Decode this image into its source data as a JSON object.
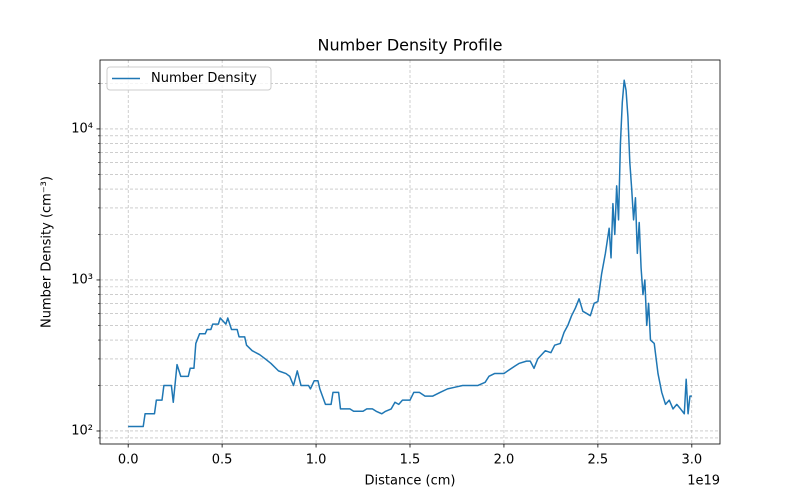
{
  "chart_data": {
    "type": "line",
    "title": "Number Density Profile",
    "x_label": "Distance (cm)",
    "x_offset_label": "1e19",
    "y_label": "Number Density (cm⁻³)",
    "y_scale": "log",
    "grid": true,
    "minor_grid": true,
    "legend_loc": "upper left",
    "xlim": [
      -0.15,
      3.15
    ],
    "xticks": [
      {
        "value": 0,
        "label": "0.0"
      },
      {
        "value": 0.5,
        "label": "0.5"
      },
      {
        "value": 1,
        "label": "1.0"
      },
      {
        "value": 1.5,
        "label": "1.5"
      },
      {
        "value": 2,
        "label": "2.0"
      },
      {
        "value": 2.5,
        "label": "2.5"
      },
      {
        "value": 3,
        "label": "3.0"
      }
    ],
    "ylim": [
      82,
      28600
    ],
    "yticks": [
      {
        "value": 100,
        "label": "10²"
      },
      {
        "value": 1000,
        "label": "10³"
      },
      {
        "value": 10000,
        "label": "10⁴"
      }
    ],
    "yminorticks": [
      90,
      200,
      300,
      400,
      500,
      600,
      700,
      800,
      900,
      2000,
      3000,
      4000,
      5000,
      6000,
      7000,
      8000,
      9000,
      20000
    ],
    "x": [
      0.0,
      0.08,
      0.09,
      0.14,
      0.15,
      0.18,
      0.19,
      0.23,
      0.24,
      0.26,
      0.28,
      0.32,
      0.33,
      0.35,
      0.36,
      0.38,
      0.41,
      0.42,
      0.44,
      0.45,
      0.48,
      0.49,
      0.52,
      0.53,
      0.55,
      0.58,
      0.59,
      0.62,
      0.63,
      0.66,
      0.7,
      0.73,
      0.76,
      0.8,
      0.84,
      0.86,
      0.88,
      0.9,
      0.92,
      0.96,
      0.97,
      0.99,
      1.01,
      1.02,
      1.05,
      1.08,
      1.09,
      1.12,
      1.13,
      1.18,
      1.2,
      1.25,
      1.27,
      1.3,
      1.32,
      1.35,
      1.37,
      1.4,
      1.42,
      1.44,
      1.46,
      1.5,
      1.52,
      1.55,
      1.58,
      1.62,
      1.66,
      1.7,
      1.74,
      1.78,
      1.82,
      1.86,
      1.9,
      1.92,
      1.95,
      1.98,
      2.0,
      2.02,
      2.06,
      2.08,
      2.12,
      2.14,
      2.16,
      2.18,
      2.22,
      2.25,
      2.27,
      2.3,
      2.32,
      2.34,
      2.36,
      2.38,
      2.4,
      2.42,
      2.44,
      2.46,
      2.48,
      2.5,
      2.52,
      2.54,
      2.56,
      2.57,
      2.58,
      2.59,
      2.6,
      2.61,
      2.62,
      2.63,
      2.64,
      2.65,
      2.66,
      2.67,
      2.68,
      2.69,
      2.7,
      2.71,
      2.72,
      2.73,
      2.74,
      2.75,
      2.76,
      2.77,
      2.78,
      2.8,
      2.82,
      2.84,
      2.86,
      2.88,
      2.9,
      2.92,
      2.94,
      2.96,
      2.97,
      2.98,
      2.99,
      3.0
    ],
    "series": [
      {
        "name": "Number Density",
        "color": "#1f77b4",
        "values": [
          107,
          107,
          130,
          130,
          160,
          160,
          200,
          200,
          155,
          275,
          230,
          230,
          260,
          260,
          380,
          440,
          440,
          470,
          470,
          510,
          510,
          560,
          510,
          560,
          470,
          470,
          420,
          420,
          370,
          340,
          320,
          300,
          280,
          250,
          240,
          230,
          200,
          250,
          200,
          200,
          190,
          215,
          215,
          190,
          150,
          150,
          180,
          180,
          140,
          140,
          135,
          135,
          140,
          140,
          135,
          130,
          135,
          140,
          155,
          150,
          160,
          160,
          180,
          180,
          170,
          170,
          180,
          190,
          195,
          200,
          200,
          200,
          210,
          230,
          240,
          240,
          240,
          250,
          270,
          280,
          290,
          290,
          260,
          300,
          340,
          330,
          370,
          380,
          450,
          500,
          580,
          650,
          750,
          620,
          600,
          580,
          700,
          720,
          1100,
          1500,
          2200,
          1400,
          3200,
          2000,
          4200,
          2500,
          8000,
          15000,
          21000,
          18000,
          12000,
          6000,
          4000,
          2500,
          3500,
          1500,
          2400,
          1200,
          800,
          1000,
          500,
          700,
          400,
          380,
          240,
          180,
          150,
          160,
          140,
          150,
          140,
          130,
          220,
          130,
          170,
          170
        ]
      }
    ]
  }
}
